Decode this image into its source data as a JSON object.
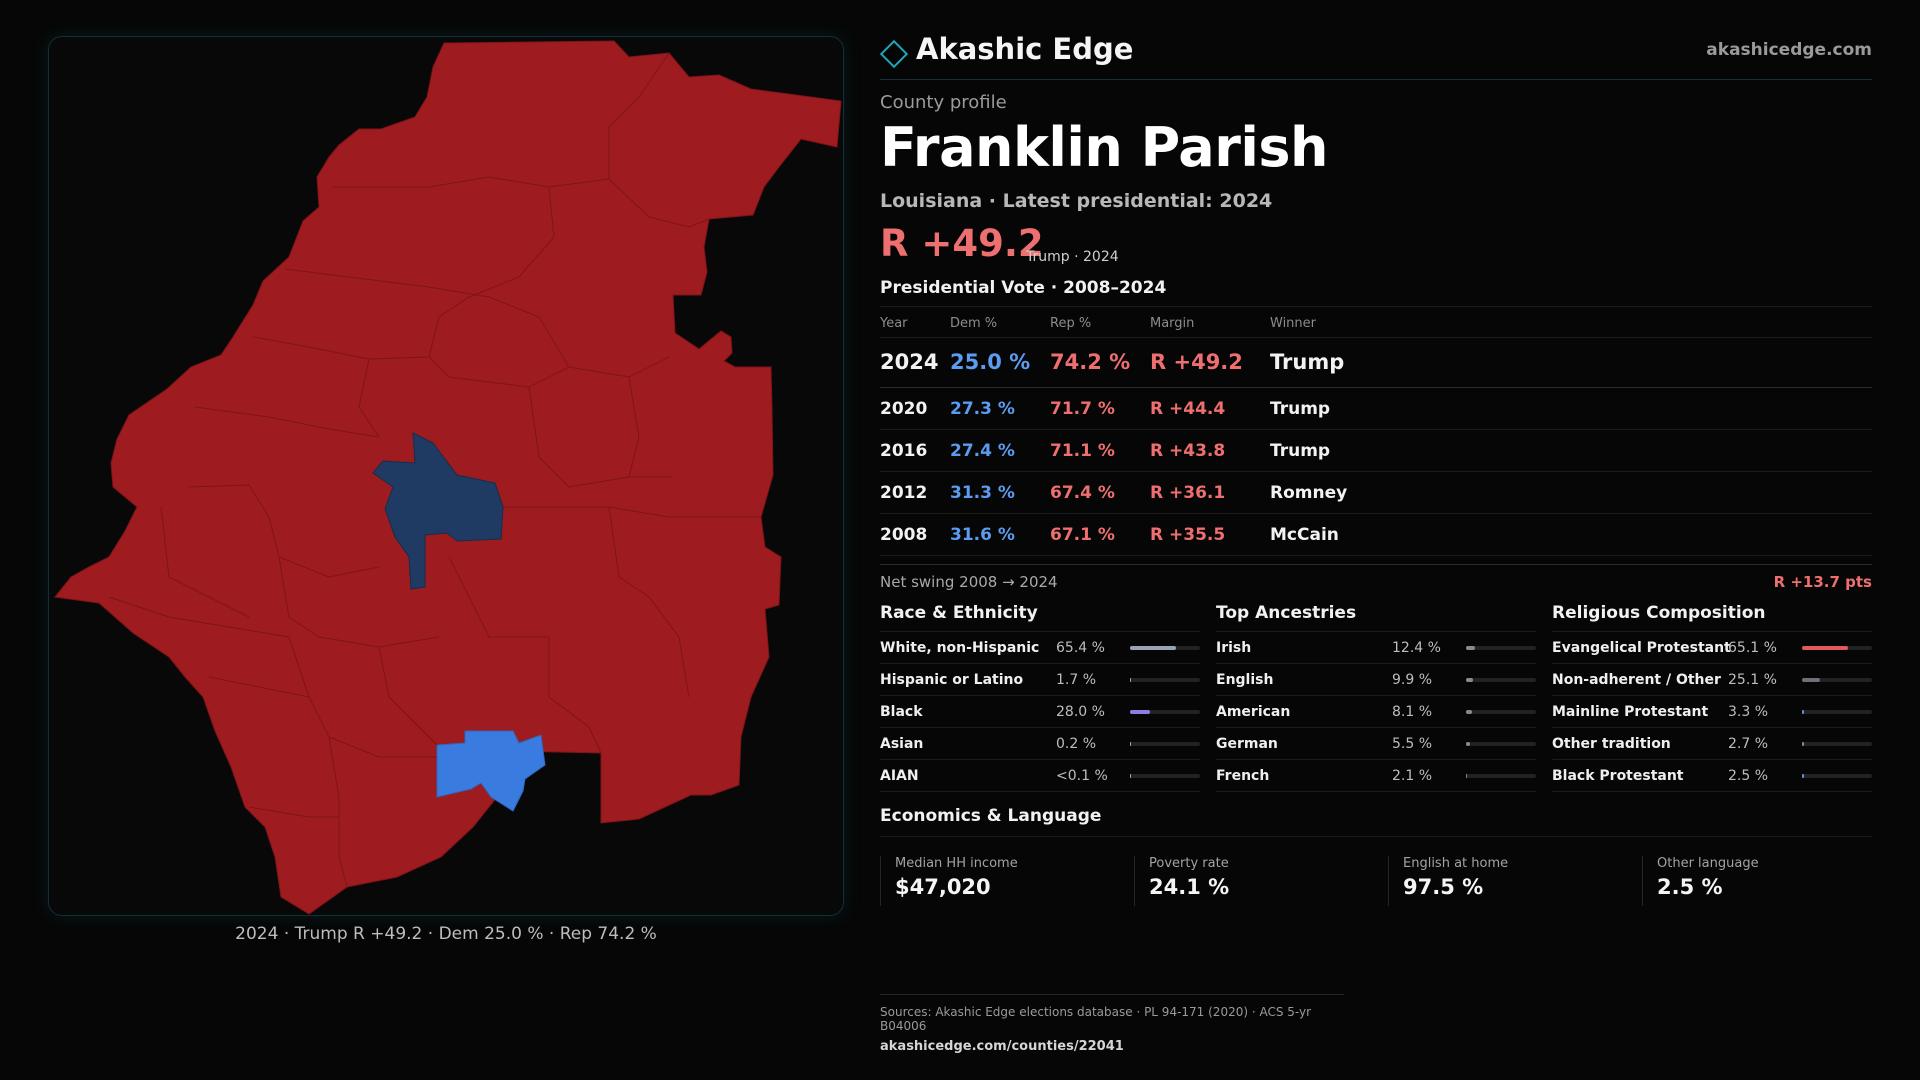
{
  "brand": {
    "name": "Akashic Edge",
    "url": "akashicedge.com",
    "accent": "#1fa7b8"
  },
  "profile": {
    "label": "County profile",
    "county": "Franklin Parish",
    "subtitle": "Louisiana · Latest presidential: 2024",
    "margin": "R +49.2",
    "margin_note": "Trump · 2024"
  },
  "votes": {
    "title": "Presidential Vote · 2008–2024",
    "headers": {
      "year": "Year",
      "dem": "Dem %",
      "rep": "Rep %",
      "margin": "Margin",
      "winner": "Winner"
    },
    "rows": [
      {
        "year": "2024",
        "dem": "25.0 %",
        "rep": "74.2 %",
        "margin": "R +49.2",
        "winner": "Trump"
      },
      {
        "year": "2020",
        "dem": "27.3 %",
        "rep": "71.7 %",
        "margin": "R +44.4",
        "winner": "Trump"
      },
      {
        "year": "2016",
        "dem": "27.4 %",
        "rep": "71.1 %",
        "margin": "R +43.8",
        "winner": "Trump"
      },
      {
        "year": "2012",
        "dem": "31.3 %",
        "rep": "67.4 %",
        "margin": "R +36.1",
        "winner": "Romney"
      },
      {
        "year": "2008",
        "dem": "31.6 %",
        "rep": "67.1 %",
        "margin": "R +35.5",
        "winner": "McCain"
      }
    ]
  },
  "swing": {
    "label": "Net swing 2008 → 2024",
    "value": "R +13.7 pts"
  },
  "race": {
    "title": "Race & Ethnicity",
    "items": [
      {
        "label": "White, non-Hispanic",
        "value": "65.4 %",
        "pct": 65.4,
        "color": "#9aa3b5"
      },
      {
        "label": "Hispanic or Latino",
        "value": "1.7 %",
        "pct": 1.7,
        "color": "#9aa3b5"
      },
      {
        "label": "Black",
        "value": "28.0 %",
        "pct": 28.0,
        "color": "#8b7fe0"
      },
      {
        "label": "Asian",
        "value": "0.2 %",
        "pct": 0.2,
        "color": "#9aa3b5"
      },
      {
        "label": "AIAN",
        "value": "<0.1 %",
        "pct": 0.05,
        "color": "#9aa3b5"
      }
    ]
  },
  "ancestry": {
    "title": "Top Ancestries",
    "items": [
      {
        "label": "Irish",
        "value": "12.4 %",
        "pct": 12.4,
        "color": "#8a8a8a"
      },
      {
        "label": "English",
        "value": "9.9 %",
        "pct": 9.9,
        "color": "#8a8a8a"
      },
      {
        "label": "American",
        "value": "8.1 %",
        "pct": 8.1,
        "color": "#8a8a8a"
      },
      {
        "label": "German",
        "value": "5.5 %",
        "pct": 5.5,
        "color": "#8a8a8a"
      },
      {
        "label": "French",
        "value": "2.1 %",
        "pct": 2.1,
        "color": "#8a8a8a"
      }
    ]
  },
  "religion": {
    "title": "Religious Composition",
    "items": [
      {
        "label": "Evangelical Protestant",
        "value": "65.1 %",
        "pct": 65.1,
        "color": "#e05a5a"
      },
      {
        "label": "Non-adherent / Other",
        "value": "25.1 %",
        "pct": 25.1,
        "color": "#6f6f78"
      },
      {
        "label": "Mainline Protestant",
        "value": "3.3 %",
        "pct": 3.3,
        "color": "#6a8fe0"
      },
      {
        "label": "Other tradition",
        "value": "2.7 %",
        "pct": 2.7,
        "color": "#8a8a8a"
      },
      {
        "label": "Black Protestant",
        "value": "2.5 %",
        "pct": 2.5,
        "color": "#6a8fe0"
      }
    ]
  },
  "economics": {
    "title": "Economics & Language",
    "cells": [
      {
        "label": "Median HH income",
        "value": "$47,020"
      },
      {
        "label": "Poverty rate",
        "value": "24.1 %"
      },
      {
        "label": "English at home",
        "value": "97.5 %"
      },
      {
        "label": "Other language",
        "value": "2.5 %"
      }
    ]
  },
  "map": {
    "caption": "2024 · Trump R +49.2 · Dem 25.0 % · Rep 74.2 %",
    "colors": {
      "rep": "#9e1b1f",
      "dem_dark": "#1f3b63",
      "dem_light": "#3a7be0"
    }
  },
  "sources": {
    "text": "Sources: Akashic Edge elections database · PL 94-171 (2020) · ACS 5-yr B04006",
    "url": "akashicedge.com/counties/22041"
  }
}
